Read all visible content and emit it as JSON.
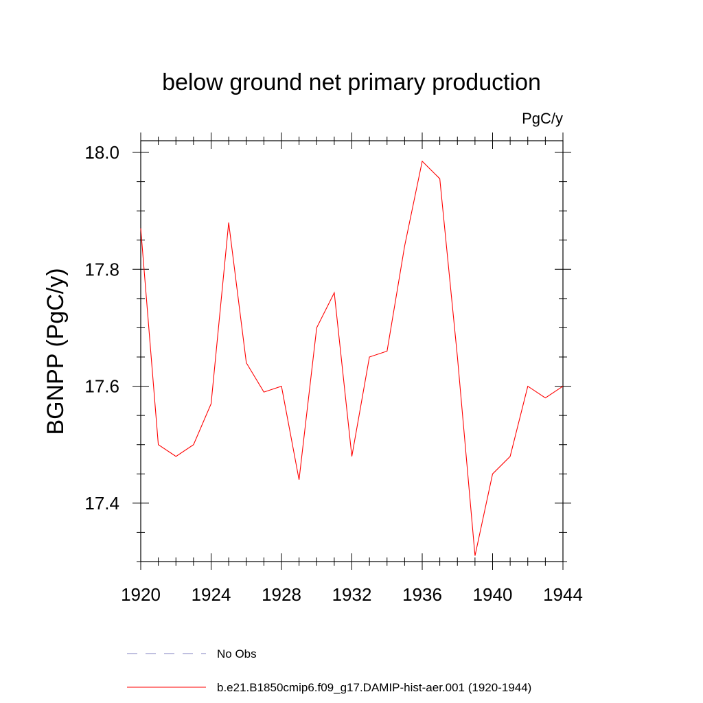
{
  "chart_data": {
    "type": "line",
    "title": "below ground net primary production",
    "units_label": "PgC/y",
    "xlabel": "",
    "ylabel": "BGNPP  (PgC/y)",
    "xlim": [
      1920,
      1944
    ],
    "ylim": [
      17.3,
      18.02
    ],
    "x_ticks": [
      "1920",
      "1924",
      "1928",
      "1932",
      "1936",
      "1940",
      "1944"
    ],
    "y_ticks": [
      "17.4",
      "17.6",
      "17.8",
      "18.0"
    ],
    "grid": false,
    "legend_position": "bottom",
    "series": [
      {
        "name": "b.e21.B1850cmip6.f09_g17.DAMIP-hist-aer.001 (1920-1944)",
        "color": "#ff0000",
        "style": "solid",
        "x": [
          1920,
          1921,
          1922,
          1923,
          1924,
          1925,
          1926,
          1927,
          1928,
          1929,
          1930,
          1931,
          1932,
          1933,
          1934,
          1935,
          1936,
          1937,
          1938,
          1939,
          1940,
          1941,
          1942,
          1943,
          1944
        ],
        "y": [
          17.87,
          17.5,
          17.48,
          17.5,
          17.57,
          17.88,
          17.64,
          17.59,
          17.6,
          17.44,
          17.7,
          17.76,
          17.48,
          17.65,
          17.66,
          17.84,
          17.985,
          17.955,
          17.65,
          17.31,
          17.45,
          17.48,
          17.6,
          17.58,
          17.6
        ]
      }
    ],
    "legend": [
      {
        "label": "No Obs",
        "color": "#8080c0",
        "style": "dashed"
      },
      {
        "label": "b.e21.B1850cmip6.f09_g17.DAMIP-hist-aer.001 (1920-1944)",
        "color": "#ff0000",
        "style": "solid"
      }
    ]
  }
}
